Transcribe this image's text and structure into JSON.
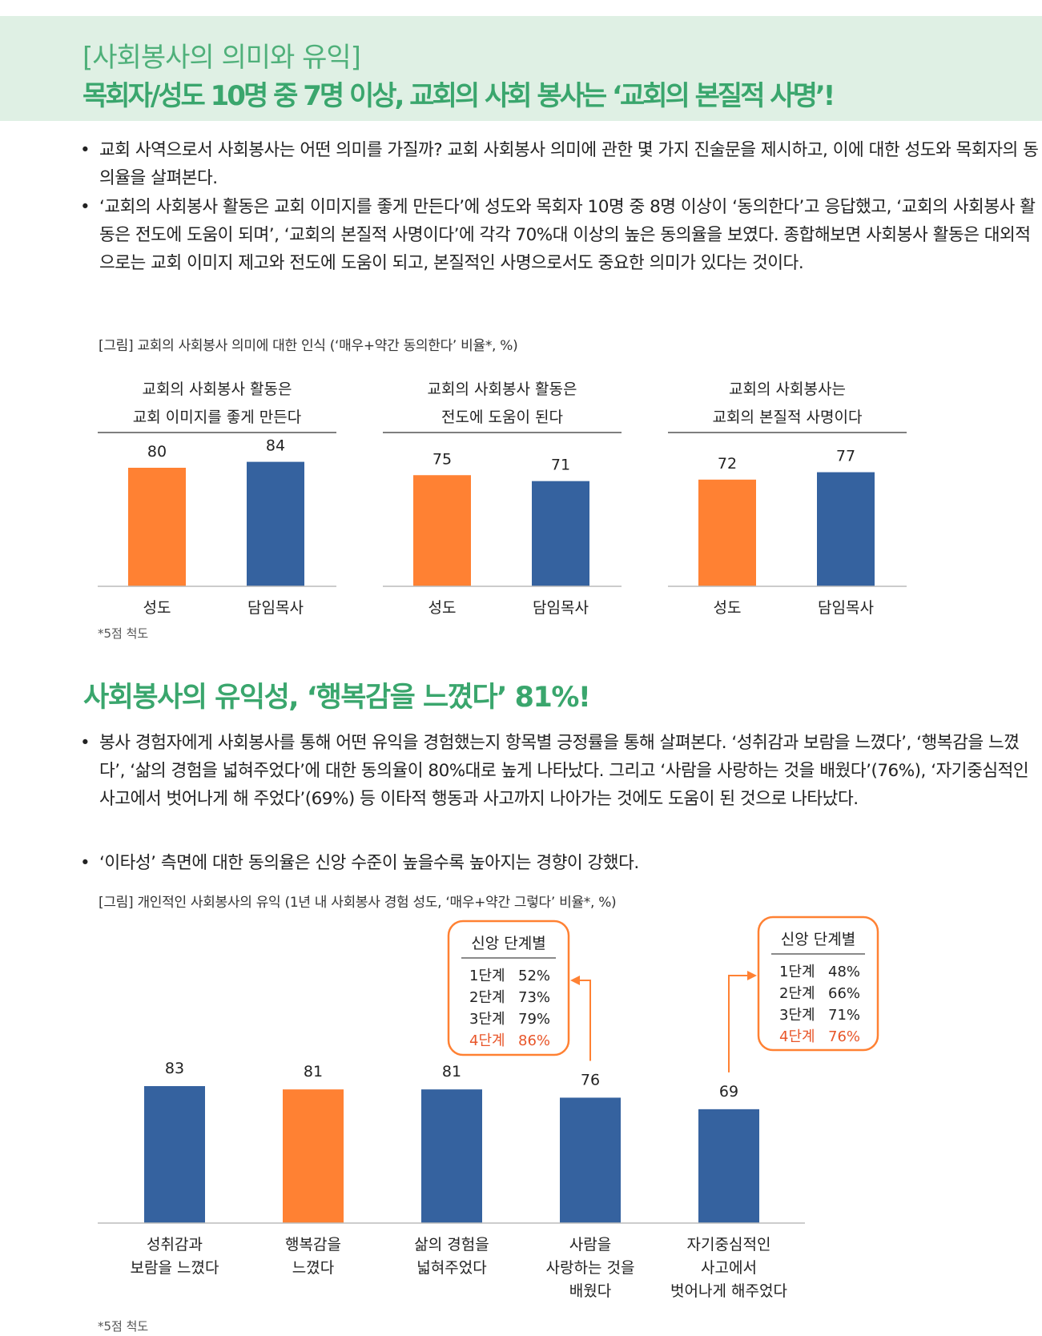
{
  "header": {
    "subtitle": "[사회봉사의 의미와 유익]",
    "title": "목회자/성도 10명 중 7명 이상, 교회의 사회 봉사는 ‘교회의 본질적 사명’!"
  },
  "section1": {
    "bullets": [
      "교회 사역으로서 사회봉사는 어떤 의미를 가질까? 교회 사회봉사 의미에 관한 몇 가지 진술문을 제시하고, 이에 대한 성도와 목회자의 동의율을 살펴본다.",
      "‘교회의 사회봉사 활동은 교회 이미지를 좋게 만든다’에 성도와 목회자 10명 중 8명 이상이 ‘동의한다’고 응답했고, ‘교회의 사회봉사 활동은 전도에 도움이 되며’, ‘교회의 본질적 사명이다’에 각각 70%대 이상의 높은 동의율을 보였다. 종합해보면 사회봉사 활동은 대외적으로는 교회 이미지 제고와 전도에 도움이 되고, 본질적인 사명으로서도 중요한 의미가 있다는 것이다."
    ],
    "figure_title": "[그림] 교회의 사회봉사 의미에 대한 인식 (‘매우+약간 동의한다’ 비율*, %)",
    "note": "*5점 척도"
  },
  "section2": {
    "title": "사회봉사의 유익성, ‘행복감을 느꼈다’ 81%!",
    "bullets": [
      "봉사 경험자에게 사회봉사를 통해 어떤 유익을 경험했는지 항목별 긍정률을 통해 살펴본다. ‘성취감과 보람을 느꼈다’, ‘행복감을 느꼈다’, ‘삶의 경험을 넓혀주었다’에 대한 동의율이 80%대로 높게 나타났다. 그리고 ‘사람을 사랑하는 것을 배웠다’(76%), ‘자기중심적인 사고에서 벗어나게 해 주었다’(69%) 등 이타적 행동과 사고까지 나아가는 것에도 도움이 된 것으로 나타났다.",
      "‘이타성’ 측면에 대한 동의율은 신앙 수준이 높을수록 높아지는 경향이 강했다."
    ],
    "figure_title": "[그림] 개인적인 사회봉사의 유익 (1년 내 사회봉사 경험 성도, ‘매우+약간 그렇다’ 비율*, %)",
    "note": "*5점 척도"
  },
  "colors": {
    "orange": "#ff8133",
    "blue": "#35629f",
    "highlight": "#e8562a",
    "green": "#3aa66d"
  },
  "chart_data": [
    {
      "type": "bar",
      "panels": [
        {
          "title": [
            "교회의 사회봉사 활동은",
            "교회 이미지를 좋게 만든다"
          ],
          "categories": [
            "성도",
            "담임목사"
          ],
          "values": [
            80,
            84
          ]
        },
        {
          "title": [
            "교회의 사회봉사 활동은",
            "전도에 도움이 된다"
          ],
          "categories": [
            "성도",
            "담임목사"
          ],
          "values": [
            75,
            71
          ]
        },
        {
          "title": [
            "교회의 사회봉사는",
            "교회의 본질적 사명이다"
          ],
          "categories": [
            "성도",
            "담임목사"
          ],
          "values": [
            72,
            77
          ]
        }
      ],
      "colors": [
        "#ff8133",
        "#35629f"
      ],
      "ylim": [
        0,
        100
      ]
    },
    {
      "type": "bar",
      "categories": [
        [
          "성취감과",
          "보람을 느꼈다"
        ],
        [
          "행복감을",
          "느꼈다"
        ],
        [
          "삶의 경험을",
          "넓혀주었다"
        ],
        [
          "사람을",
          "사랑하는 것을",
          "배웠다"
        ],
        [
          "자기중심적인",
          "사고에서",
          "벗어나게 해주었다"
        ]
      ],
      "values": [
        83,
        81,
        81,
        76,
        69
      ],
      "highlight_index": 1,
      "ylim": [
        0,
        100
      ],
      "callouts": [
        {
          "title": "신앙 단계별",
          "target_index": 3,
          "rows": [
            [
              "1단계",
              "52%"
            ],
            [
              "2단계",
              "73%"
            ],
            [
              "3단계",
              "79%"
            ],
            [
              "4단계",
              "86%"
            ]
          ]
        },
        {
          "title": "신앙 단계별",
          "target_index": 4,
          "rows": [
            [
              "1단계",
              "48%"
            ],
            [
              "2단계",
              "66%"
            ],
            [
              "3단계",
              "71%"
            ],
            [
              "4단계",
              "76%"
            ]
          ]
        }
      ]
    }
  ]
}
